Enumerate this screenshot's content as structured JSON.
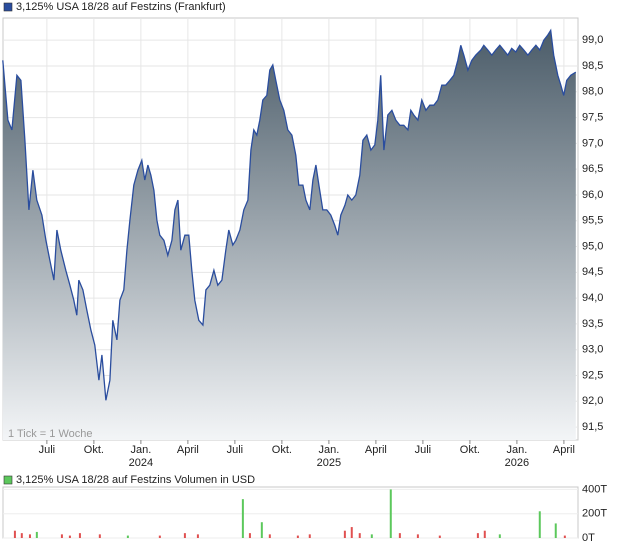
{
  "chart_data": [
    {
      "type": "area",
      "title": "3,125% USA 18/28 auf Festzins (Frankfurt)",
      "color": "#2a4d9e",
      "fill_gradient": [
        "#4b5c69",
        "#f3f5f7"
      ],
      "note": "1 Tick = 1 Woche",
      "grid": true,
      "x": [
        -2.81,
        -2.49,
        -2.23,
        -1.91,
        -1.66,
        -1.4,
        -1.15,
        -0.89,
        -0.64,
        -0.32,
        -0.06,
        0.19,
        0.45,
        0.64,
        0.89,
        1.21,
        1.47,
        1.72,
        1.91,
        2.04,
        2.3,
        2.55,
        2.81,
        3.06,
        3.32,
        3.51,
        3.77,
        4.02,
        4.21,
        4.47,
        4.66,
        4.91,
        5.11,
        5.3,
        5.55,
        5.81,
        6.06,
        6.25,
        6.45,
        6.64,
        6.83,
        7.02,
        7.21,
        7.47,
        7.72,
        7.98,
        8.17,
        8.36,
        8.55,
        8.81,
        9.06,
        9.25,
        9.44,
        9.7,
        9.96,
        10.15,
        10.4,
        10.66,
        10.91,
        11.17,
        11.42,
        11.61,
        11.87,
        12.06,
        12.32,
        12.57,
        12.83,
        13.02,
        13.21,
        13.4,
        13.59,
        13.78,
        14.04,
        14.23,
        14.42,
        14.61,
        14.87,
        15.12,
        15.38,
        15.64,
        15.89,
        16.08,
        16.34,
        16.53,
        16.78,
        16.98,
        17.17,
        17.36,
        17.61,
        17.87,
        18.12,
        18.38,
        18.57,
        18.76,
        19.02,
        19.21,
        19.46,
        19.72,
        19.97,
        20.17,
        20.42,
        20.68,
        20.93,
        21.12,
        21.31,
        21.51,
        21.76,
        22.02,
        22.27,
        22.53,
        22.78,
        23.04,
        23.23,
        23.42,
        23.68,
        23.93,
        24.19,
        24.44,
        24.7,
        24.95,
        25.21,
        25.46,
        25.72,
        25.97,
        26.23,
        26.42,
        26.61,
        26.87,
        27.12,
        27.38,
        27.7,
        27.89,
        28.14,
        28.4,
        28.65,
        28.91,
        29.16,
        29.42,
        29.67,
        29.93,
        30.18,
        30.44,
        30.7,
        30.95,
        31.21,
        31.46,
        31.72,
        31.97,
        32.16,
        32.35,
        32.61,
        32.8,
        32.99,
        33.18,
        33.44,
        33.76
      ],
      "values": [
        98.61,
        97.45,
        97.26,
        98.32,
        98.22,
        97.06,
        95.71,
        96.48,
        95.9,
        95.61,
        95.12,
        94.74,
        94.35,
        95.32,
        94.93,
        94.54,
        94.25,
        93.96,
        93.67,
        94.35,
        94.16,
        93.77,
        93.38,
        93.09,
        92.41,
        92.9,
        92.02,
        92.41,
        93.57,
        93.19,
        93.96,
        94.16,
        94.93,
        95.51,
        96.19,
        96.48,
        96.67,
        96.29,
        96.58,
        96.38,
        96.09,
        95.51,
        95.22,
        95.12,
        94.83,
        95.12,
        95.71,
        95.9,
        94.93,
        95.22,
        95.22,
        94.54,
        93.96,
        93.57,
        93.48,
        94.16,
        94.25,
        94.54,
        94.25,
        94.35,
        94.93,
        95.32,
        95.03,
        95.12,
        95.32,
        95.71,
        95.9,
        96.87,
        97.26,
        97.16,
        97.45,
        97.84,
        97.93,
        98.42,
        98.52,
        98.22,
        97.84,
        97.64,
        97.26,
        97.16,
        96.77,
        96.19,
        96.19,
        95.9,
        95.71,
        96.29,
        96.58,
        96.19,
        95.71,
        95.71,
        95.61,
        95.41,
        95.22,
        95.61,
        95.8,
        96.0,
        95.9,
        96.0,
        96.38,
        97.06,
        97.16,
        96.87,
        96.97,
        97.45,
        98.32,
        96.87,
        97.55,
        97.64,
        97.45,
        97.35,
        97.35,
        97.26,
        97.64,
        97.55,
        97.45,
        97.84,
        97.64,
        97.74,
        97.74,
        97.84,
        98.13,
        98.13,
        98.22,
        98.32,
        98.61,
        98.9,
        98.71,
        98.42,
        98.61,
        98.71,
        98.81,
        98.9,
        98.81,
        98.71,
        98.81,
        98.9,
        98.81,
        98.71,
        98.84,
        98.77,
        98.9,
        98.81,
        98.71,
        98.81,
        98.9,
        98.81,
        99.0,
        99.1,
        99.19,
        98.71,
        98.32,
        98.13,
        97.93,
        98.22,
        98.32,
        98.38
      ],
      "xlim": [
        -2.8,
        33.9
      ],
      "ylim": [
        91.25,
        99.43
      ],
      "yticks": [
        {
          "value": 91.5,
          "label": "91,5"
        },
        {
          "value": 92.0,
          "label": "92,0"
        },
        {
          "value": 92.5,
          "label": "92,5"
        },
        {
          "value": 93.0,
          "label": "93,0"
        },
        {
          "value": 93.5,
          "label": "93,5"
        },
        {
          "value": 94.0,
          "label": "94,0"
        },
        {
          "value": 94.5,
          "label": "94,5"
        },
        {
          "value": 95.0,
          "label": "95,0"
        },
        {
          "value": 95.5,
          "label": "95,5"
        },
        {
          "value": 96.0,
          "label": "96,0"
        },
        {
          "value": 96.5,
          "label": "96,5"
        },
        {
          "value": 97.0,
          "label": "97,0"
        },
        {
          "value": 97.5,
          "label": "97,5"
        },
        {
          "value": 98.0,
          "label": "98,0"
        },
        {
          "value": 98.5,
          "label": "98,5"
        },
        {
          "value": 99.0,
          "label": "99,0"
        }
      ],
      "xticks": [
        {
          "value": 0,
          "label": "Juli"
        },
        {
          "value": 3,
          "label": "Okt."
        },
        {
          "value": 6,
          "label": "Jan."
        },
        {
          "value": 9,
          "label": "April"
        },
        {
          "value": 12,
          "label": "Juli"
        },
        {
          "value": 15,
          "label": "Okt."
        },
        {
          "value": 18,
          "label": "Jan."
        },
        {
          "value": 21,
          "label": "April"
        },
        {
          "value": 24,
          "label": "Juli"
        },
        {
          "value": 27,
          "label": "Okt."
        },
        {
          "value": 30,
          "label": "Jan."
        },
        {
          "value": 33,
          "label": "April"
        }
      ],
      "year_labels": [
        {
          "value": 6,
          "label": "2024"
        },
        {
          "value": 18,
          "label": "2025"
        },
        {
          "value": 30,
          "label": "2026"
        }
      ]
    },
    {
      "type": "bar",
      "title": "3,125% USA 18/28 auf Festzins Volumen in USD",
      "color": "#5cc85c",
      "x": [
        -2.04,
        -1.6,
        -1.08,
        -0.64,
        0.96,
        1.47,
        2.11,
        3.38,
        5.17,
        7.21,
        8.81,
        9.64,
        12.51,
        12.96,
        13.72,
        14.23,
        16.02,
        16.78,
        19.02,
        19.46,
        19.97,
        20.74,
        21.95,
        22.53,
        23.68,
        25.08,
        27.51,
        27.95,
        28.91,
        31.46,
        32.48,
        33.06
      ],
      "values": [
        60000,
        40000,
        30000,
        50000,
        30000,
        20000,
        40000,
        30000,
        20000,
        20000,
        40000,
        30000,
        320000,
        40000,
        130000,
        30000,
        20000,
        30000,
        60000,
        90000,
        40000,
        30000,
        400000,
        40000,
        30000,
        20000,
        40000,
        60000,
        30000,
        220000,
        120000,
        20000
      ],
      "colors": [
        "#e05050",
        "#e05050",
        "#e05050",
        "#5cc85c",
        "#e05050",
        "#e05050",
        "#e05050",
        "#e05050",
        "#5cc85c",
        "#e05050",
        "#e05050",
        "#e05050",
        "#5cc85c",
        "#e05050",
        "#5cc85c",
        "#e05050",
        "#e05050",
        "#e05050",
        "#e05050",
        "#e05050",
        "#e05050",
        "#5cc85c",
        "#5cc85c",
        "#e05050",
        "#e05050",
        "#e05050",
        "#e05050",
        "#e05050",
        "#5cc85c",
        "#5cc85c",
        "#5cc85c",
        "#e05050"
      ],
      "xlim": [
        -2.8,
        33.9
      ],
      "ylim": [
        0,
        420000
      ],
      "yticks": [
        {
          "value": 0,
          "label": "0T"
        },
        {
          "value": 200000,
          "label": "200T"
        },
        {
          "value": 400000,
          "label": "400T"
        }
      ]
    }
  ]
}
